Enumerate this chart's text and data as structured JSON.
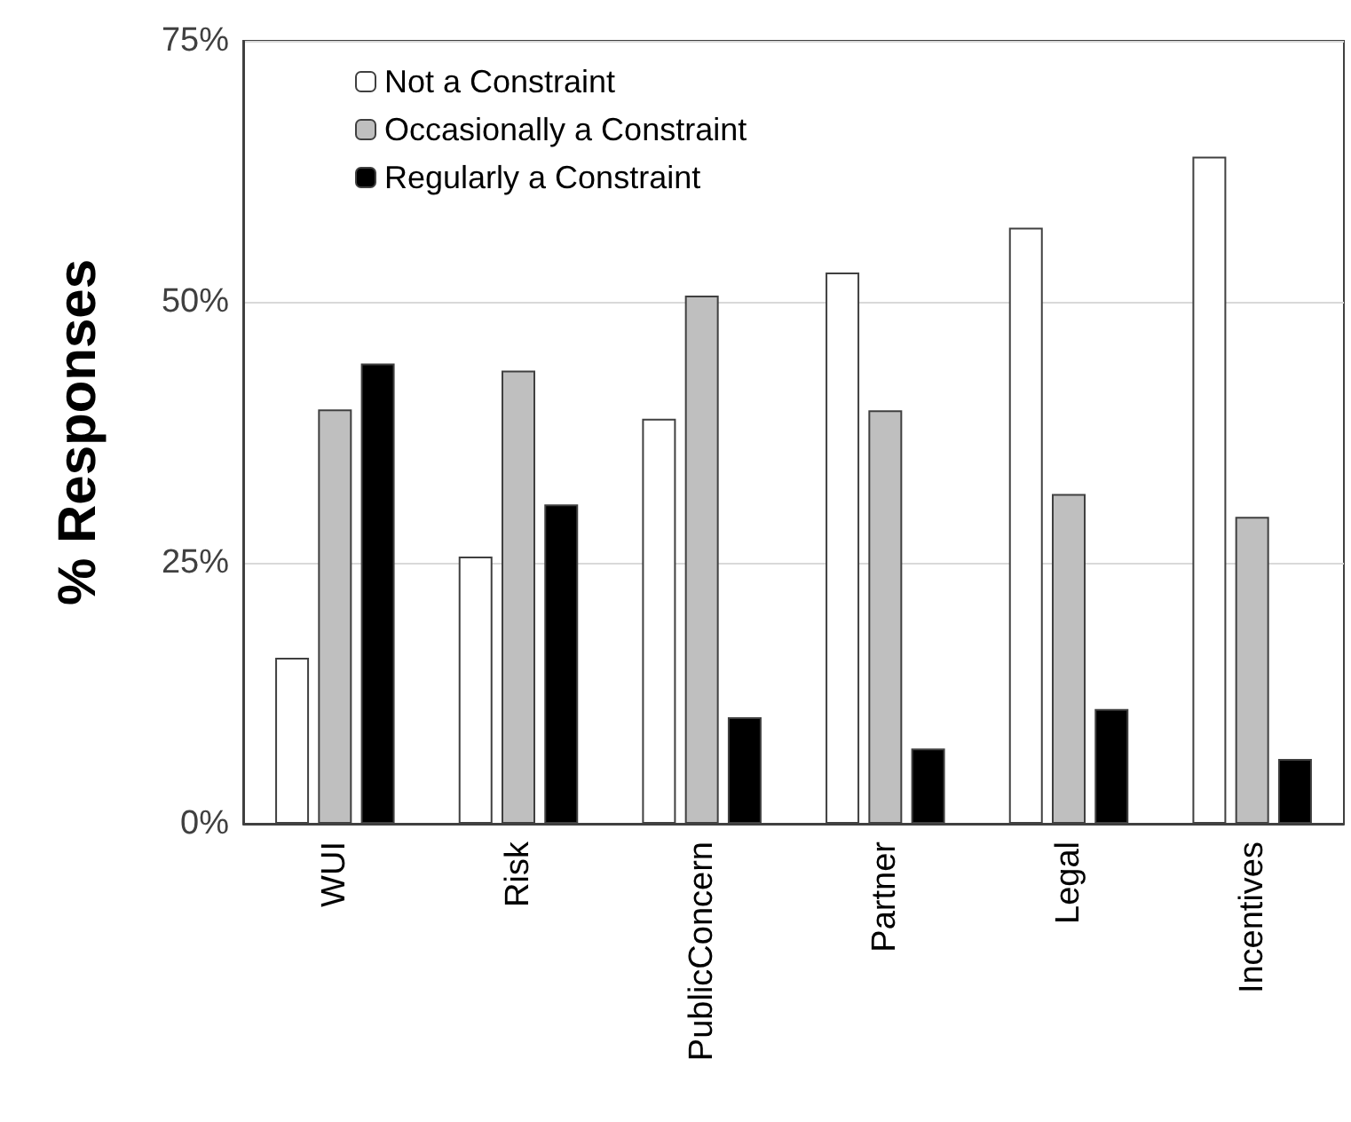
{
  "chart_data": {
    "type": "bar",
    "ylabel": "% Responses",
    "categories": [
      "WUI",
      "Risk",
      "PublicConcern",
      "Partner",
      "Legal",
      "Incentives"
    ],
    "series": [
      {
        "name": "Not a Constraint",
        "color": "#ffffff",
        "values": [
          15.9,
          25.6,
          38.8,
          52.8,
          57.1,
          63.9
        ]
      },
      {
        "name": "Occasionally a Constraint",
        "color": "#bfbfbf",
        "values": [
          39.7,
          43.4,
          50.6,
          39.6,
          31.6,
          29.4
        ]
      },
      {
        "name": "Regularly a Constraint",
        "color": "#000000",
        "values": [
          44.1,
          30.6,
          10.2,
          7.2,
          11.0,
          6.2
        ]
      }
    ],
    "ylim": [
      0,
      75
    ],
    "yticks": [
      {
        "value": 0,
        "label": "0%"
      },
      {
        "value": 25,
        "label": "25%"
      },
      {
        "value": 50,
        "label": "50%"
      },
      {
        "value": 75,
        "label": "75%"
      }
    ],
    "grid": "y",
    "legend": "top left"
  }
}
